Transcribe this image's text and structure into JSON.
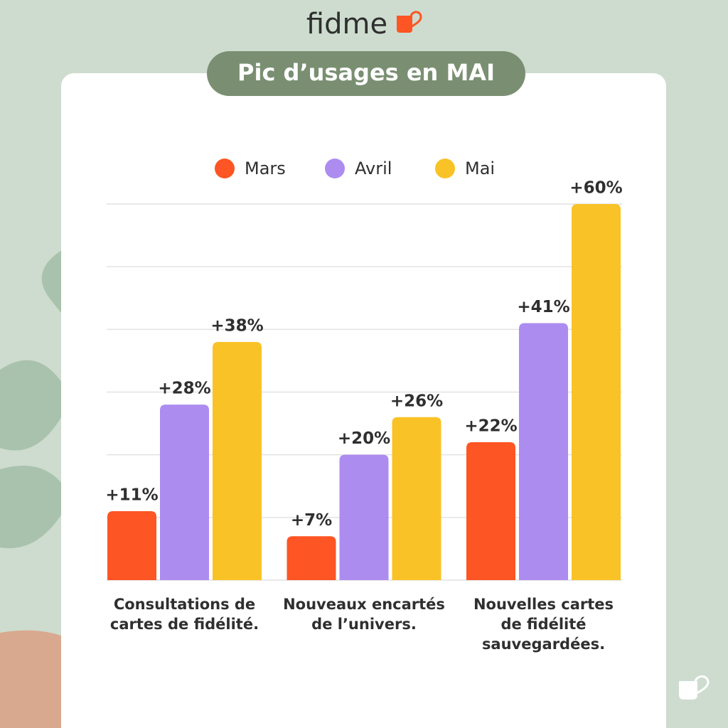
{
  "brand": "fidme",
  "chart_data": {
    "type": "bar",
    "title": "Pic d’usages en MAI",
    "categories": [
      "Consultations de cartes de fidélité.",
      "Nouveaux encartés de l’univers.",
      "Nouvelles cartes de fidélité sauvegardées."
    ],
    "series": [
      {
        "name": "Mars",
        "color": "#fd5523",
        "values": [
          11,
          7,
          22
        ],
        "value_labels": [
          "+11%",
          "+7%",
          "+22%"
        ]
      },
      {
        "name": "Avril",
        "color": "#ad8cf0",
        "values": [
          28,
          20,
          41
        ],
        "value_labels": [
          "+28%",
          "+20%",
          "+41%"
        ]
      },
      {
        "name": "Mai",
        "color": "#f9c226",
        "values": [
          38,
          26,
          60
        ],
        "value_labels": [
          "+38%",
          "+26%",
          "+60%"
        ]
      }
    ],
    "ylim": [
      0,
      60
    ],
    "yticks": [
      0,
      10,
      20,
      30,
      40,
      50,
      60
    ],
    "grid": true,
    "legend": "top"
  }
}
